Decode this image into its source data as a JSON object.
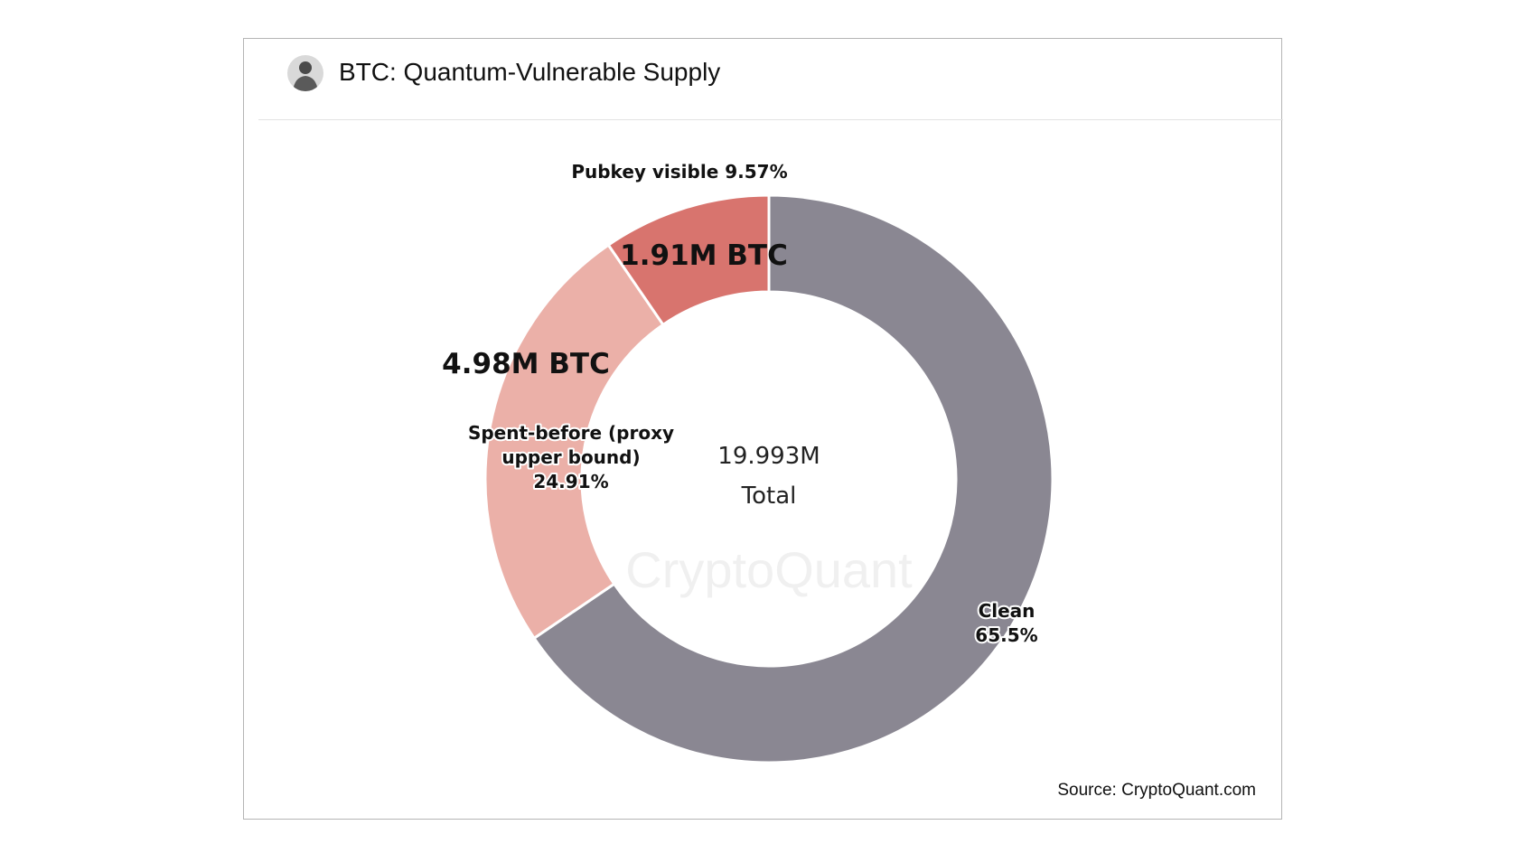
{
  "header": {
    "title": "BTC: Quantum-Vulnerable Supply"
  },
  "footer": {
    "source": "Source: CryptoQuant.com"
  },
  "watermark": "CryptoQuant",
  "chart_data": {
    "type": "pie",
    "donut": true,
    "title": "BTC: Quantum-Vulnerable Supply",
    "center_value": "19.993M",
    "center_label": "Total",
    "slices": [
      {
        "label": "Clean",
        "percent_label": "65.5%",
        "value": 65.5,
        "color": "#8a8792"
      },
      {
        "label": "Spent-before (proxy upper bound)",
        "label_lines": [
          "Spent-before (proxy",
          "upper bound)"
        ],
        "percent_label": "24.91%",
        "value": 24.91,
        "amount_label": "4.98M BTC",
        "color": "#ebb0a8"
      },
      {
        "label": "Pubkey visible",
        "percent_label": "9.57%",
        "value": 9.57,
        "amount_label": "1.91M BTC",
        "color": "#d8746e"
      }
    ]
  }
}
